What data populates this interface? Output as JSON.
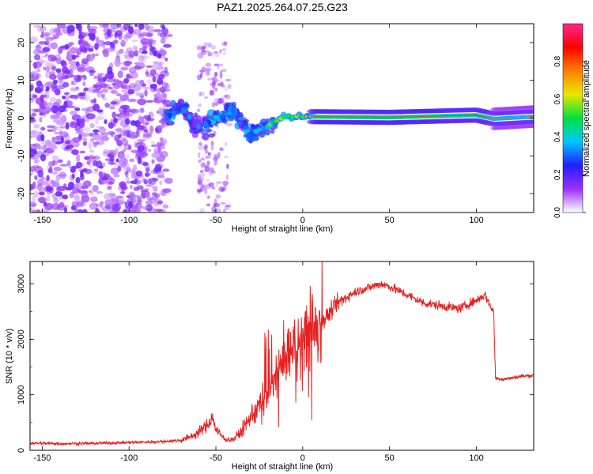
{
  "title": "PAZ1.2025.264.07.25.G23",
  "chart_data": [
    {
      "type": "heatmap",
      "xlabel": "Height of straight line (km)",
      "ylabel": "Frequency (Hz)",
      "xlim": [
        -157,
        133
      ],
      "ylim": [
        -25,
        25
      ],
      "xticks": [
        -150,
        -100,
        -50,
        0,
        50,
        100
      ],
      "yticks": [
        -20,
        -10,
        0,
        10,
        20
      ],
      "colorbar": {
        "label": "Normalized spectral amplitude",
        "range": [
          0,
          1
        ],
        "ticks": [
          0.0,
          0.2,
          0.4,
          0.6,
          0.8
        ],
        "colors": [
          "#ffffff",
          "#9a30ff",
          "#2020ff",
          "#00c8ff",
          "#00e040",
          "#e8e800",
          "#ff8000",
          "#ff0000",
          "#ff2890"
        ]
      },
      "ridge": [
        {
          "x": -77,
          "y": 0.8
        },
        {
          "x": -70,
          "y": 3.5
        },
        {
          "x": -62,
          "y": -2.5
        },
        {
          "x": -55,
          "y": -1.5
        },
        {
          "x": -40,
          "y": 2
        },
        {
          "x": -30,
          "y": -4.5
        },
        {
          "x": -20,
          "y": -2
        },
        {
          "x": -10,
          "y": 0.5
        },
        {
          "x": 0,
          "y": 0.4
        },
        {
          "x": 50,
          "y": 0.2
        },
        {
          "x": 100,
          "y": 0.8
        },
        {
          "x": 110,
          "y": -0.2
        },
        {
          "x": 133,
          "y": 0.4
        }
      ]
    },
    {
      "type": "line",
      "xlabel": "Height of straight line (km)",
      "ylabel": "SNR (10 * v/v)",
      "xlim": [
        -157,
        133
      ],
      "ylim": [
        0,
        3400
      ],
      "xticks": [
        -150,
        -100,
        -50,
        0,
        50,
        100
      ],
      "yticks": [
        0,
        1000,
        2000,
        3000
      ],
      "color": "#e82020",
      "x": [
        -157,
        -140,
        -120,
        -100,
        -80,
        -70,
        -62,
        -55,
        -52,
        -50,
        -45,
        -40,
        -35,
        -30,
        -25,
        -20,
        -15,
        -10,
        -5,
        0,
        5,
        10,
        15,
        20,
        30,
        40,
        45,
        50,
        60,
        70,
        80,
        90,
        100,
        105,
        108,
        110,
        111,
        115,
        120,
        125,
        133
      ],
      "y": [
        130,
        120,
        125,
        140,
        160,
        180,
        280,
        450,
        600,
        380,
        200,
        190,
        350,
        600,
        800,
        1000,
        1400,
        1700,
        1850,
        2000,
        2100,
        2300,
        2450,
        2650,
        2850,
        2950,
        3000,
        2950,
        2800,
        2650,
        2600,
        2550,
        2700,
        2800,
        2600,
        2500,
        1300,
        1280,
        1300,
        1330,
        1350
      ]
    }
  ]
}
